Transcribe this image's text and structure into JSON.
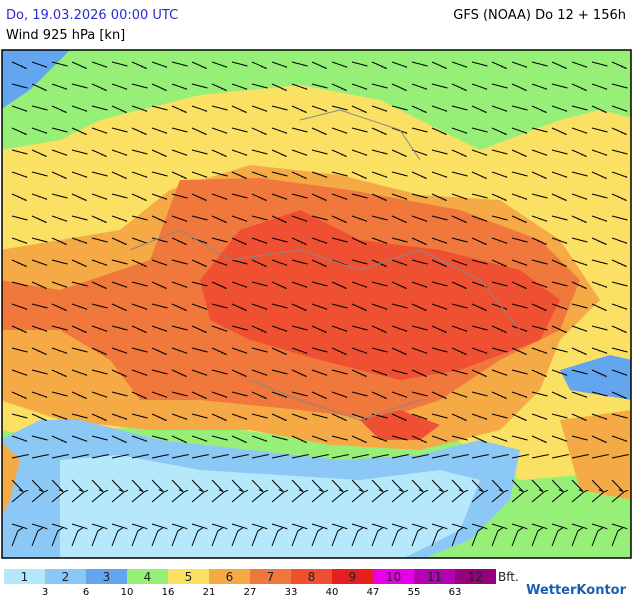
{
  "header": {
    "date": "Do, 19.03.2026 00:00 UTC",
    "variable": "Wind 925 hPa [kn]",
    "model": "GFS (NOAA) Do 12 + 156h"
  },
  "legend": {
    "classes": [
      {
        "label": "1",
        "color": "#b4e8fa"
      },
      {
        "label": "2",
        "color": "#8cc8f5"
      },
      {
        "label": "3",
        "color": "#64a5f0"
      },
      {
        "label": "4",
        "color": "#96f078"
      },
      {
        "label": "5",
        "color": "#fae164"
      },
      {
        "label": "6",
        "color": "#f5aa46"
      },
      {
        "label": "7",
        "color": "#f0783c"
      },
      {
        "label": "8",
        "color": "#f05032"
      },
      {
        "label": "9",
        "color": "#e61e1e"
      },
      {
        "label": "10",
        "color": "#e600e6"
      },
      {
        "label": "11",
        "color": "#b400b4"
      },
      {
        "label": "12",
        "color": "#96007d"
      }
    ],
    "thresholds": [
      3,
      6,
      10,
      16,
      21,
      27,
      33,
      40,
      47,
      55,
      63
    ],
    "unit": "Bft."
  },
  "logo": "WetterKontor"
}
